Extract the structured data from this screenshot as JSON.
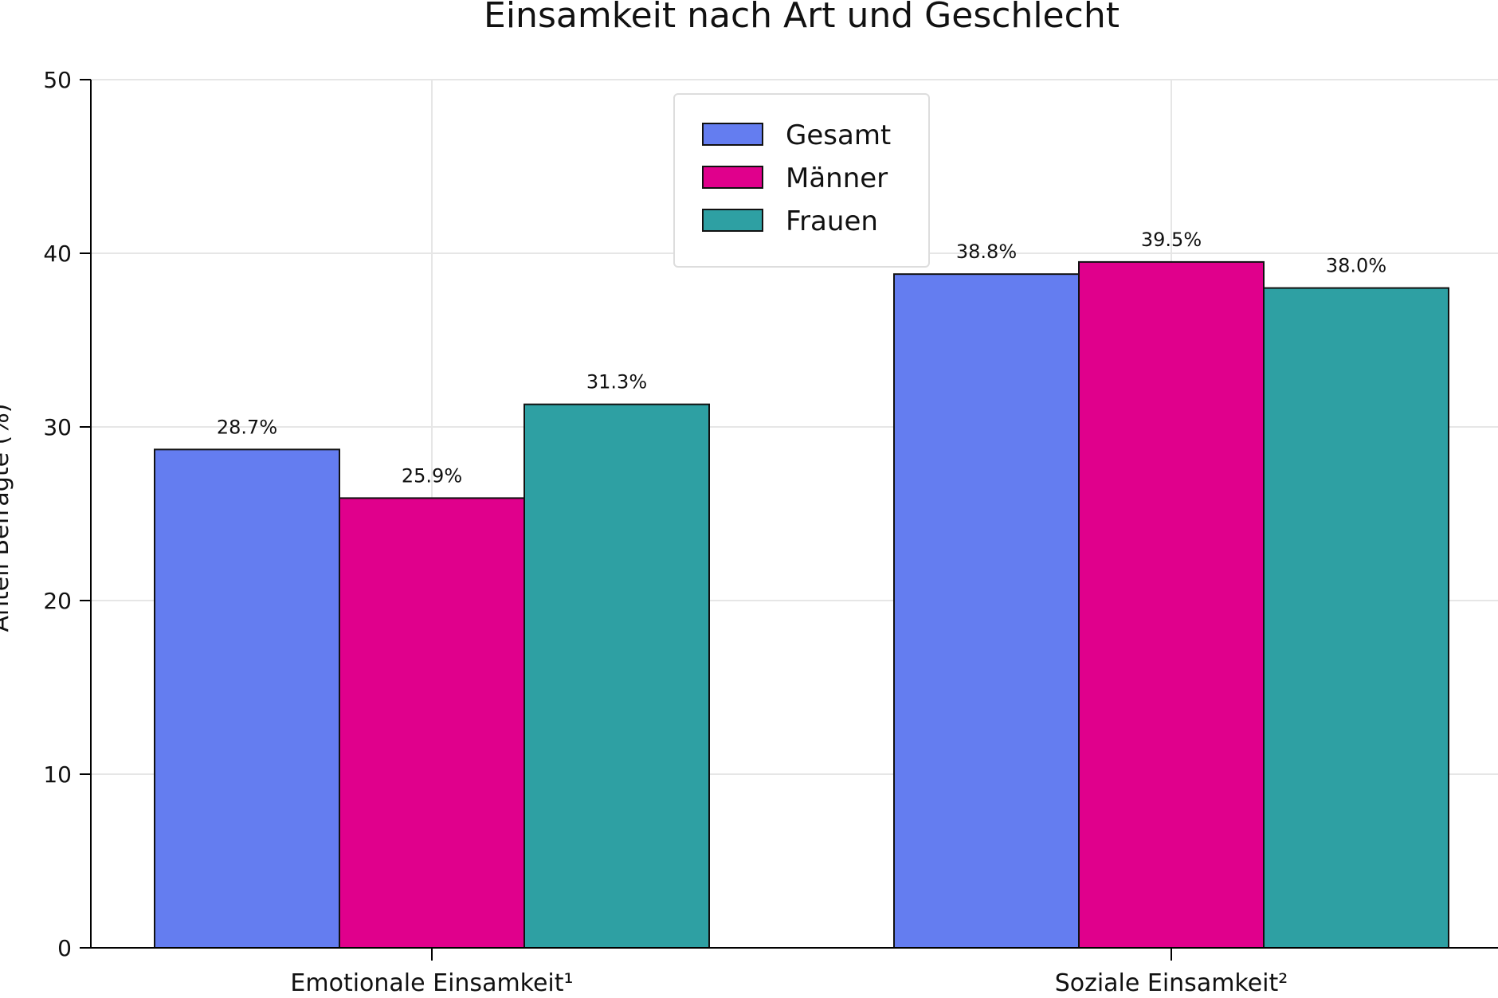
{
  "chart_data": {
    "type": "bar",
    "title": "Einsamkeit nach Art und Geschlecht",
    "xlabel": "",
    "ylabel": "Anteil Befragte (%)",
    "categories": [
      "Emotionale Einsamkeit¹",
      "Soziale Einsamkeit²"
    ],
    "series": [
      {
        "name": "Gesamt",
        "values": [
          28.7,
          38.8
        ],
        "color": "#647df0",
        "labels": [
          "28.7%",
          "38.8%"
        ]
      },
      {
        "name": "Männer",
        "values": [
          25.9,
          39.5
        ],
        "color": "#e0008c",
        "labels": [
          "25.9%",
          "39.5%"
        ]
      },
      {
        "name": "Frauen",
        "values": [
          31.3,
          38.0
        ],
        "color": "#2ea0a3",
        "labels": [
          "31.3%",
          "38.0%"
        ]
      }
    ],
    "ylim": [
      0,
      50
    ],
    "yticks": [
      "0",
      "10",
      "20",
      "30",
      "40",
      "50"
    ],
    "grid": true,
    "legend": "top-center"
  }
}
